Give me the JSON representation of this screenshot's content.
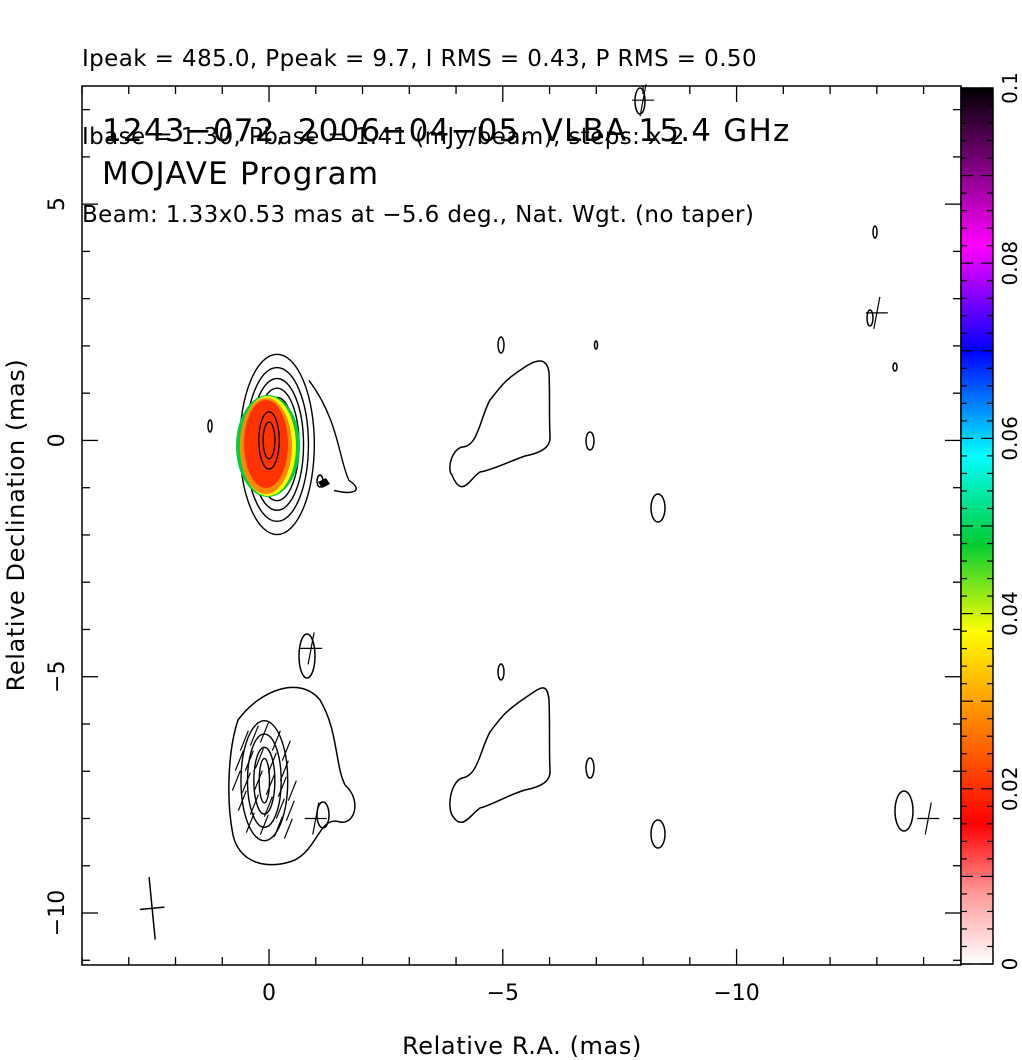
{
  "header": {
    "line1": "Ipeak = 485.0, Ppeak = 9.7, I RMS = 0.43, P RMS = 0.50",
    "line2": "Ibase = 1.30, Pbase = 1.41 (mJy/beam), steps: x 2",
    "line3": "Beam: 1.33x0.53 mas at −5.6 deg., Nat. Wgt. (no taper)"
  },
  "chart_data": {
    "type": "heatmap",
    "title": "1243−072, 2006−04−05, VLBA 15.4 GHz",
    "subtitle": "MOJAVE Program",
    "xlabel": "Relative R.A. (mas)",
    "ylabel": "Relative Declination (mas)",
    "xlim": [
      4.0,
      -14.8
    ],
    "ylim": [
      -11.1,
      7.5
    ],
    "x_ticks": [
      0,
      -5,
      -10
    ],
    "x_tick_labels": [
      "0",
      "−5",
      "−10"
    ],
    "y_ticks": [
      5,
      0,
      -5,
      -10
    ],
    "y_tick_labels": [
      "5",
      "0",
      "−5",
      "−10"
    ],
    "colorbar": {
      "range": [
        0,
        0.1
      ],
      "ticks": [
        0,
        0.02,
        0.04,
        0.06,
        0.08,
        0.1
      ],
      "tick_labels": [
        "0",
        "0.02",
        "0.04",
        "0.06",
        "0.08",
        "0.1"
      ],
      "colors": [
        "#ffffff",
        "#ff0000",
        "#ff9900",
        "#ffff00",
        "#00cc00",
        "#00ffff",
        "#0000ff",
        "#ff00ff",
        "#000000"
      ]
    },
    "upper_panel": {
      "core_center": [
        0,
        0
      ],
      "contour_radii": [
        [
          1.9,
          2.05
        ],
        [
          1.6,
          1.75
        ],
        [
          1.35,
          1.5
        ],
        [
          1.12,
          1.28
        ],
        [
          0.92,
          1.07
        ],
        [
          0.72,
          0.87
        ],
        [
          0.52,
          0.65
        ],
        [
          0.3,
          0.42
        ]
      ],
      "polarization_peak_color": "#ff2200",
      "jet_feature_center": [
        -5.6,
        0.0
      ]
    },
    "lower_panel": {
      "core_center": [
        0.1,
        -7.2
      ],
      "contour_radii": [
        [
          1.5,
          1.7
        ],
        [
          0.85,
          1.25
        ],
        [
          0.55,
          0.85
        ],
        [
          0.3,
          0.55
        ]
      ],
      "jet_feature_center": [
        -5.5,
        -7.0
      ]
    },
    "beam": {
      "major": 1.33,
      "minor": 0.53,
      "pa_deg": -5.6,
      "center": [
        2.5,
        -9.9
      ]
    },
    "grid": false
  }
}
